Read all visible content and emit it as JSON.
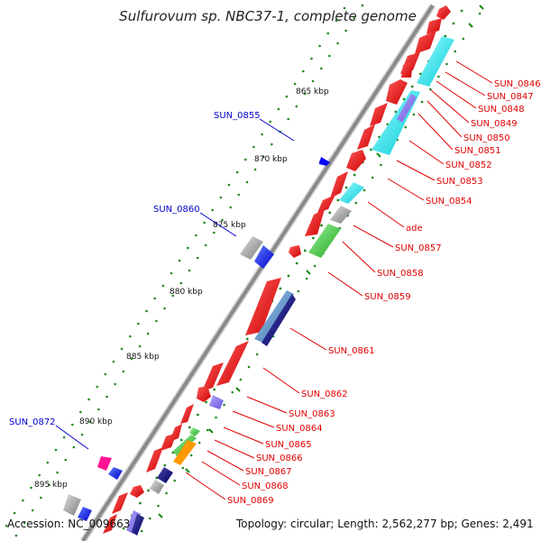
{
  "title": "Sulfurovum sp. NBC37-1, complete genome",
  "footer": {
    "accession": "Accession: NC_009663",
    "topology": "Topology: circular; Length: 2,562,277 bp; Genes: 2,491"
  },
  "ticks": [
    "865 kbp",
    "870 kbp",
    "875 kbp",
    "880 kbp",
    "885 kbp",
    "890 kbp",
    "895 kbp"
  ],
  "genes_right": [
    "SUN_0846",
    "SUN_0847",
    "SUN_0848",
    "SUN_0849",
    "SUN_0850",
    "SUN_0851",
    "SUN_0852",
    "SUN_0853",
    "SUN_0854",
    "ade",
    "SUN_0857",
    "SUN_0858",
    "SUN_0859",
    "SUN_0861",
    "SUN_0862",
    "SUN_0863",
    "SUN_0864",
    "SUN_0865",
    "SUN_0866",
    "SUN_0867",
    "SUN_0868",
    "SUN_0869"
  ],
  "genes_left": [
    "SUN_0855",
    "SUN_0860",
    "SUN_0872"
  ],
  "colors": {
    "backbone": "#909090",
    "cds_forward": "#ff0000",
    "cds_highlight_cyan": "#00ffff",
    "cds_blue": "#0000ff",
    "cds_navy": "#000080",
    "cds_green": "#33cc33",
    "cds_grey": "#9a9a9a",
    "cds_magenta": "#ff1493",
    "cds_orange": "#ff9900",
    "gc_dots": "#008800",
    "label_red": "#e00000",
    "label_blue": "#0000cc"
  }
}
